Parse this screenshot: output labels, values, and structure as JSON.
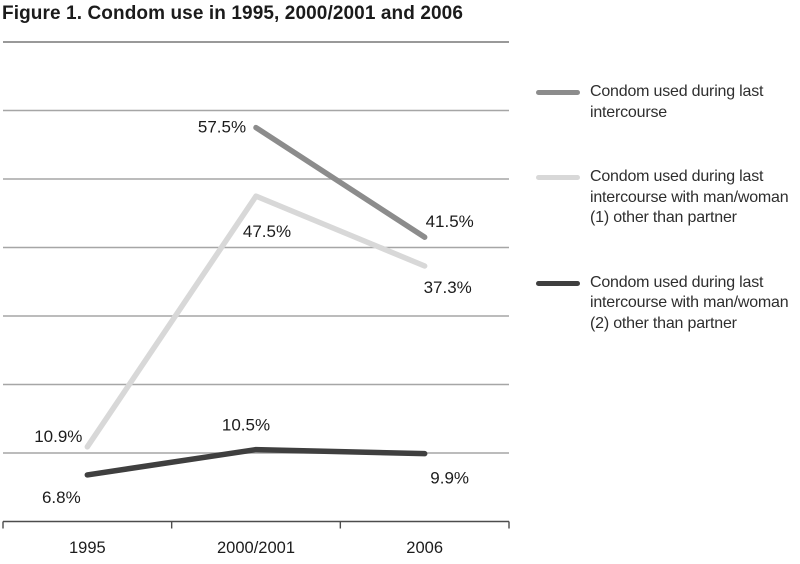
{
  "title": "Figure 1. Condom use in 1995, 2000/2001 and 2006",
  "chart_data": {
    "type": "line",
    "title": "Figure 1. Condom use in 1995, 2000/2001 and 2006",
    "categories": [
      "1995",
      "2000/2001",
      "2006"
    ],
    "series": [
      {
        "name": "Condom used during last intercourse",
        "color": "#8c8c8c",
        "values": [
          null,
          57.5,
          41.5
        ],
        "point_labels": [
          "",
          "57.5%",
          "41.5%"
        ]
      },
      {
        "name": "Condom used during last intercourse with man/woman (1) other than partner",
        "color": "#d8d8d8",
        "values": [
          10.9,
          47.5,
          37.3
        ],
        "point_labels": [
          "10.9%",
          "47.5%",
          "37.3%"
        ]
      },
      {
        "name": "Condom used during last intercourse with man/woman (2) other than partner",
        "color": "#3f3f3f",
        "values": [
          6.8,
          10.5,
          9.9
        ],
        "point_labels": [
          "6.8%",
          "10.5%",
          "9.9%"
        ]
      }
    ],
    "xlabel": "",
    "ylabel": "",
    "ylim": [
      0,
      70
    ],
    "grid_interval": 10,
    "grid": true,
    "legend_position": "right",
    "colors": {
      "gridline": "#a6a6a6",
      "top_gridline": "#999999",
      "axis": "#4d4d4d",
      "label_text": "#1c1c1c"
    }
  }
}
